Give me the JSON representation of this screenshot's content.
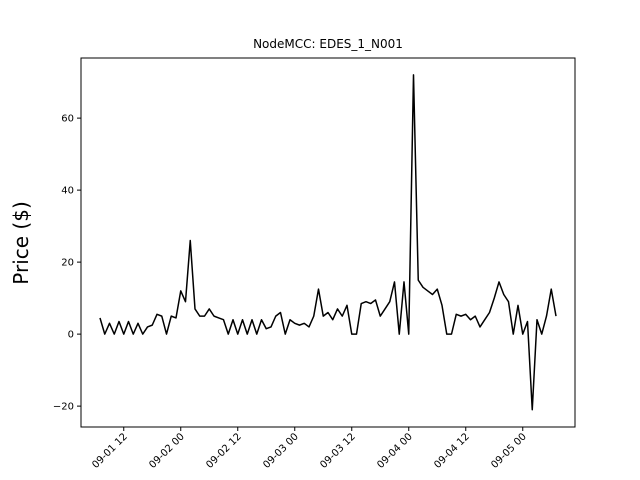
{
  "chart_data": {
    "type": "line",
    "title": "NodeMCC: EDES_1_N001",
    "y_label": "Price ($)",
    "x": [
      "09-01 07",
      "09-01 08",
      "09-01 09",
      "09-01 10",
      "09-01 11",
      "09-01 12",
      "09-01 13",
      "09-01 14",
      "09-01 15",
      "09-01 16",
      "09-01 17",
      "09-01 18",
      "09-01 19",
      "09-01 20",
      "09-01 21",
      "09-01 22",
      "09-01 23",
      "09-02 00",
      "09-02 01",
      "09-02 02",
      "09-02 03",
      "09-02 04",
      "09-02 05",
      "09-02 06",
      "09-02 07",
      "09-02 08",
      "09-02 09",
      "09-02 10",
      "09-02 11",
      "09-02 12",
      "09-02 13",
      "09-02 14",
      "09-02 15",
      "09-02 16",
      "09-02 17",
      "09-02 18",
      "09-02 19",
      "09-02 20",
      "09-02 21",
      "09-02 22",
      "09-02 23",
      "09-03 00",
      "09-03 01",
      "09-03 02",
      "09-03 03",
      "09-03 04",
      "09-03 05",
      "09-03 06",
      "09-03 07",
      "09-03 08",
      "09-03 09",
      "09-03 10",
      "09-03 11",
      "09-03 12",
      "09-03 13",
      "09-03 14",
      "09-03 15",
      "09-03 16",
      "09-03 17",
      "09-03 18",
      "09-03 19",
      "09-03 20",
      "09-03 21",
      "09-03 22",
      "09-03 23",
      "09-04 00",
      "09-04 01",
      "09-04 02",
      "09-04 03",
      "09-04 04",
      "09-04 05",
      "09-04 06",
      "09-04 07",
      "09-04 08",
      "09-04 09",
      "09-04 10",
      "09-04 11",
      "09-04 12",
      "09-04 13",
      "09-04 14",
      "09-04 15",
      "09-04 16",
      "09-04 17",
      "09-04 18",
      "09-04 19",
      "09-04 20",
      "09-04 21",
      "09-04 22",
      "09-04 23",
      "09-05 00",
      "09-05 01",
      "09-05 02",
      "09-05 03",
      "09-05 04",
      "09-05 05",
      "09-05 06",
      "09-05 07"
    ],
    "series": [
      {
        "name": "EDES_1_N001",
        "color": "#000000",
        "values": [
          4.5,
          0,
          3,
          0,
          3.5,
          0,
          3.5,
          0,
          3,
          0,
          2,
          2.5,
          5.5,
          5,
          0,
          5,
          4.5,
          12,
          9,
          26,
          7,
          5,
          5,
          7,
          5,
          4.5,
          4,
          0,
          4,
          0,
          4,
          0,
          4,
          0,
          4,
          1.5,
          2,
          5,
          6,
          0,
          4,
          3,
          2.5,
          3,
          2,
          5,
          12.5,
          5,
          6,
          4,
          7,
          5,
          8,
          0,
          0,
          8.5,
          9,
          8.5,
          9.5,
          5,
          7,
          9,
          14.5,
          0,
          14.5,
          0,
          72,
          15,
          13,
          12,
          11,
          12.5,
          8,
          0,
          0,
          5.5,
          5,
          5.5,
          4,
          5,
          2,
          4,
          6,
          10,
          14.5,
          11,
          9,
          0,
          8,
          0,
          3.5,
          -21,
          4,
          0,
          5,
          12.5,
          5
        ]
      }
    ],
    "xlim": [
      "09-01 03",
      "09-05 11"
    ],
    "xticks": [
      "09-01 12",
      "09-02 00",
      "09-02 12",
      "09-03 00",
      "09-03 12",
      "09-04 00",
      "09-04 12",
      "09-05 00"
    ],
    "ylim": [
      -25.8,
      76.7
    ],
    "yticks": [
      {
        "value": -20,
        "label": "−20"
      },
      0,
      20,
      40,
      60
    ]
  }
}
